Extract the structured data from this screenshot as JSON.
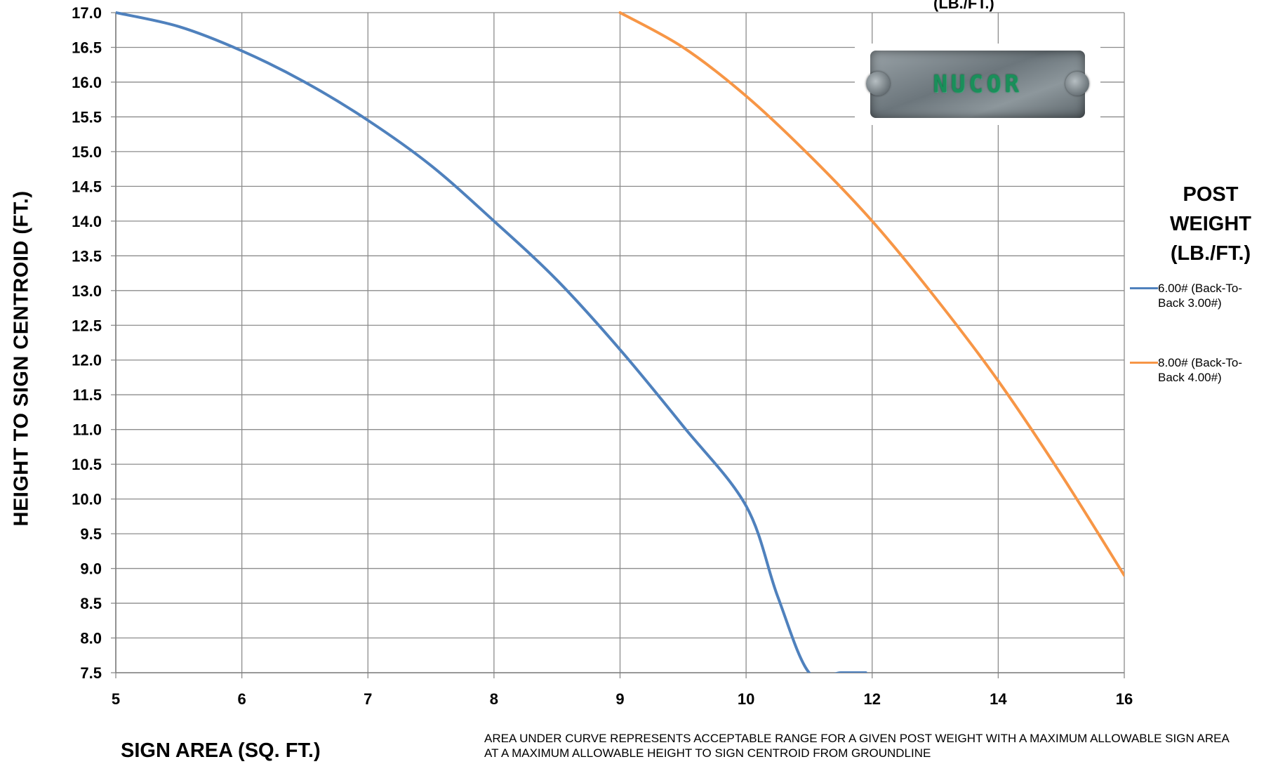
{
  "chart_data": {
    "type": "line",
    "title_fragment": "(LB./FT.)",
    "xlabel": "SIGN AREA (SQ. FT.)",
    "ylabel": "HEIGHT TO SIGN CENTROID (FT.)",
    "x_ticks": [
      "5",
      "6",
      "7",
      "8",
      "9",
      "10",
      "12",
      "14",
      "16"
    ],
    "y_ticks": [
      "17.0",
      "16.5",
      "16.0",
      "15.5",
      "15.0",
      "14.5",
      "14.0",
      "13.5",
      "13.0",
      "12.5",
      "12.0",
      "11.5",
      "11.0",
      "10.5",
      "10.0",
      "9.5",
      "9.0",
      "8.5",
      "8.0",
      "7.5"
    ],
    "ylim": [
      7.5,
      17.0
    ],
    "grid": true,
    "legend_title": "POST WEIGHT (LB./FT.)",
    "legend_position": "right",
    "series": [
      {
        "name": "6.00# (Back-To-Back 3.00#)",
        "color": "#4f81bd",
        "x": [
          5.0,
          5.5,
          6.0,
          6.5,
          7.0,
          7.5,
          8.0,
          8.5,
          9.0,
          9.5,
          10.0,
          10.5,
          11.0,
          11.5,
          11.9
        ],
        "y": [
          17.0,
          16.8,
          16.45,
          16.0,
          15.45,
          14.8,
          14.0,
          13.15,
          12.15,
          11.05,
          9.9,
          8.6,
          7.5,
          7.5,
          7.5
        ]
      },
      {
        "name": "8.00# (Back-To-Back 4.00#)",
        "color": "#f79646",
        "x": [
          9.0,
          9.5,
          10.0,
          11.0,
          12.0,
          13.0,
          14.0,
          15.0,
          16.0
        ],
        "y": [
          17.0,
          16.5,
          15.8,
          14.95,
          14.0,
          12.9,
          11.7,
          10.35,
          8.9
        ]
      }
    ],
    "annotation": "AREA UNDER CURVE REPRESENTS ACCEPTABLE RANGE FOR  A GIVEN POST WEIGHT  WITH  A MAXIMUM ALLOWABLE SIGN AREA AT A MAXIMUM ALLOWABLE HEIGHT TO SIGN  CENTROID FROM GROUNDLINE"
  },
  "logo": {
    "text": "NUCOR"
  },
  "legend": {
    "title": "POST WEIGHT (LB./FT.)",
    "items": [
      {
        "label": "6.00# (Back-To-Back 3.00#)",
        "color": "#4f81bd"
      },
      {
        "label": "8.00# (Back-To-Back 4.00#)",
        "color": "#f79646"
      }
    ]
  }
}
